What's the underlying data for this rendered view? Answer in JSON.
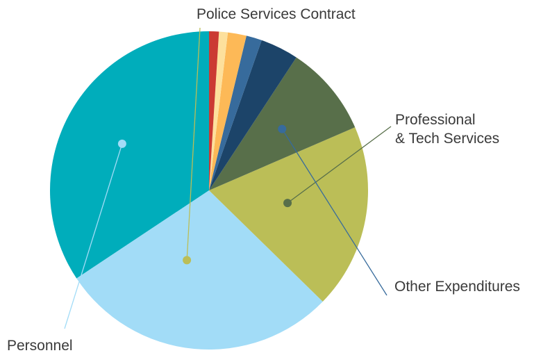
{
  "chart_data": {
    "type": "pie",
    "title": "",
    "start_angle_deg": 90,
    "direction": "counterclockwise",
    "slices": [
      {
        "label": "Personnel",
        "value": 34.5,
        "color": "#00adbb"
      },
      {
        "label": "Police Services Contract",
        "value": 28.5,
        "color": "#a2dcf7"
      },
      {
        "label": "Professional & Tech Services",
        "value": 18.9,
        "color": "#bbbe57"
      },
      {
        "label": "Other Expenditures",
        "value": 9.3,
        "color": "#586f4a"
      },
      {
        "label": "",
        "value": 3.9,
        "color": "#1c4469"
      },
      {
        "label": "",
        "value": 1.6,
        "color": "#376b9c"
      },
      {
        "label": "",
        "value": 1.9,
        "color": "#fdb957"
      },
      {
        "label": "",
        "value": 0.9,
        "color": "#fde09c"
      },
      {
        "label": "",
        "value": 1.0,
        "color": "#cb3a33"
      }
    ],
    "annotations": [
      {
        "lines": [
          "Personnel"
        ],
        "slice": 0,
        "color": "#a2dcf7"
      },
      {
        "lines": [
          "Police Services Contract"
        ],
        "slice": 1,
        "color": "#bbbe57"
      },
      {
        "lines": [
          "Professional",
          "& Tech Services"
        ],
        "slice": 2,
        "color": "#586f4a"
      },
      {
        "lines": [
          "Other Expenditures"
        ],
        "slice": 3,
        "color": "#376b9c"
      }
    ]
  }
}
